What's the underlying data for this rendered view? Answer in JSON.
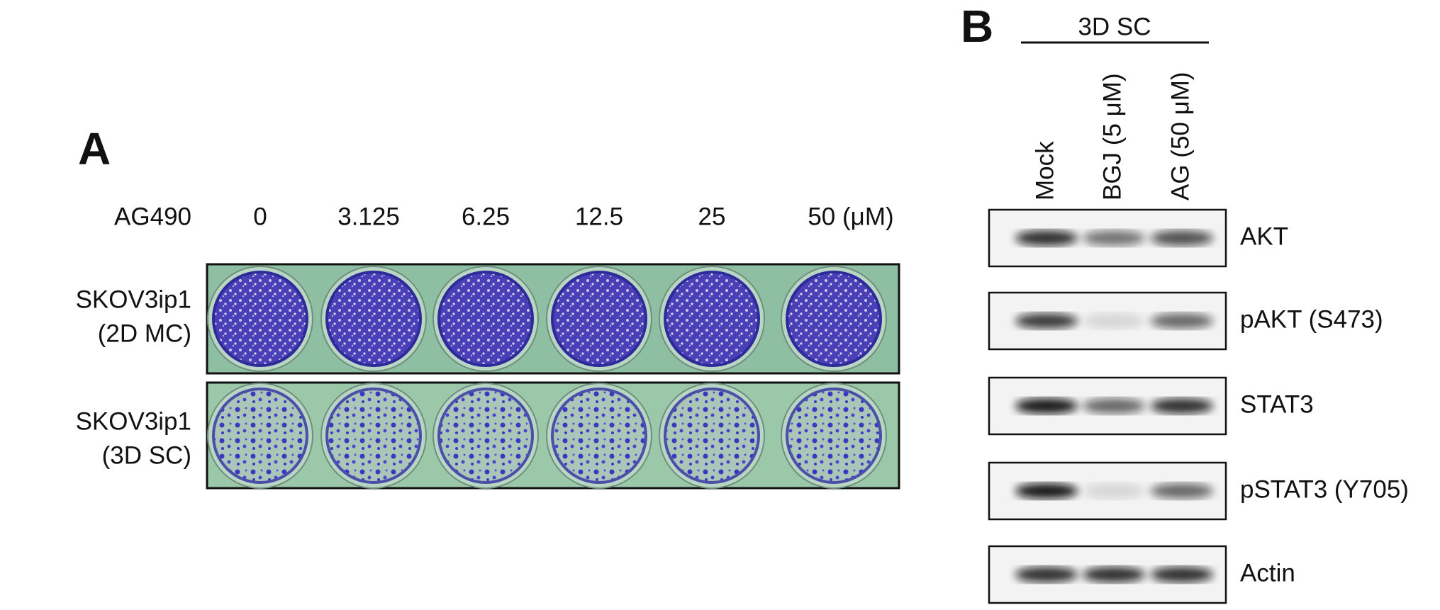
{
  "panel_a": {
    "label": "A",
    "treatment": "AG490",
    "concentrations": [
      "0",
      "3.125",
      "6.25",
      "12.5",
      "25",
      "50 (μM)"
    ],
    "rows": [
      {
        "line1": "SKOV3ip1",
        "line2": "(2D MC)"
      },
      {
        "line1": "SKOV3ip1",
        "line2": "(3D SC)"
      }
    ]
  },
  "panel_b": {
    "label": "B",
    "group": "3D SC",
    "lanes": [
      "Mock",
      "BGJ (5 μM)",
      "AG (50 μM)"
    ],
    "blots": [
      "AKT",
      "pAKT (S473)",
      "STAT3",
      "pSTAT3 (Y705)",
      "Actin"
    ]
  }
}
